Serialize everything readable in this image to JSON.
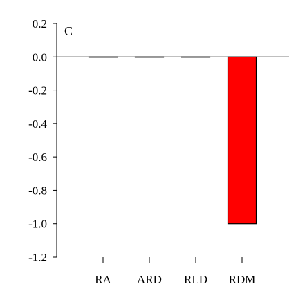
{
  "chart_data": {
    "type": "bar",
    "panel_label": "C",
    "title": "",
    "xlabel": "",
    "ylabel": "",
    "categories": [
      "RA",
      "ARD",
      "RLD",
      "RDM"
    ],
    "values": [
      0.0,
      0.0,
      0.0,
      -1.0
    ],
    "ylim": [
      -1.2,
      0.2
    ],
    "yticks": [
      0.2,
      0.0,
      -0.2,
      -0.4,
      -0.6,
      -0.8,
      -1.0,
      -1.2
    ],
    "ytick_labels": [
      "0.2",
      "0.0",
      "-0.2",
      "-0.4",
      "-0.6",
      "-0.8",
      "-1.0",
      "-1.2"
    ],
    "bar_color": "#ff0000",
    "bar_edge_color": "#000000",
    "zero_line": true,
    "grid": false,
    "legend": "none"
  }
}
